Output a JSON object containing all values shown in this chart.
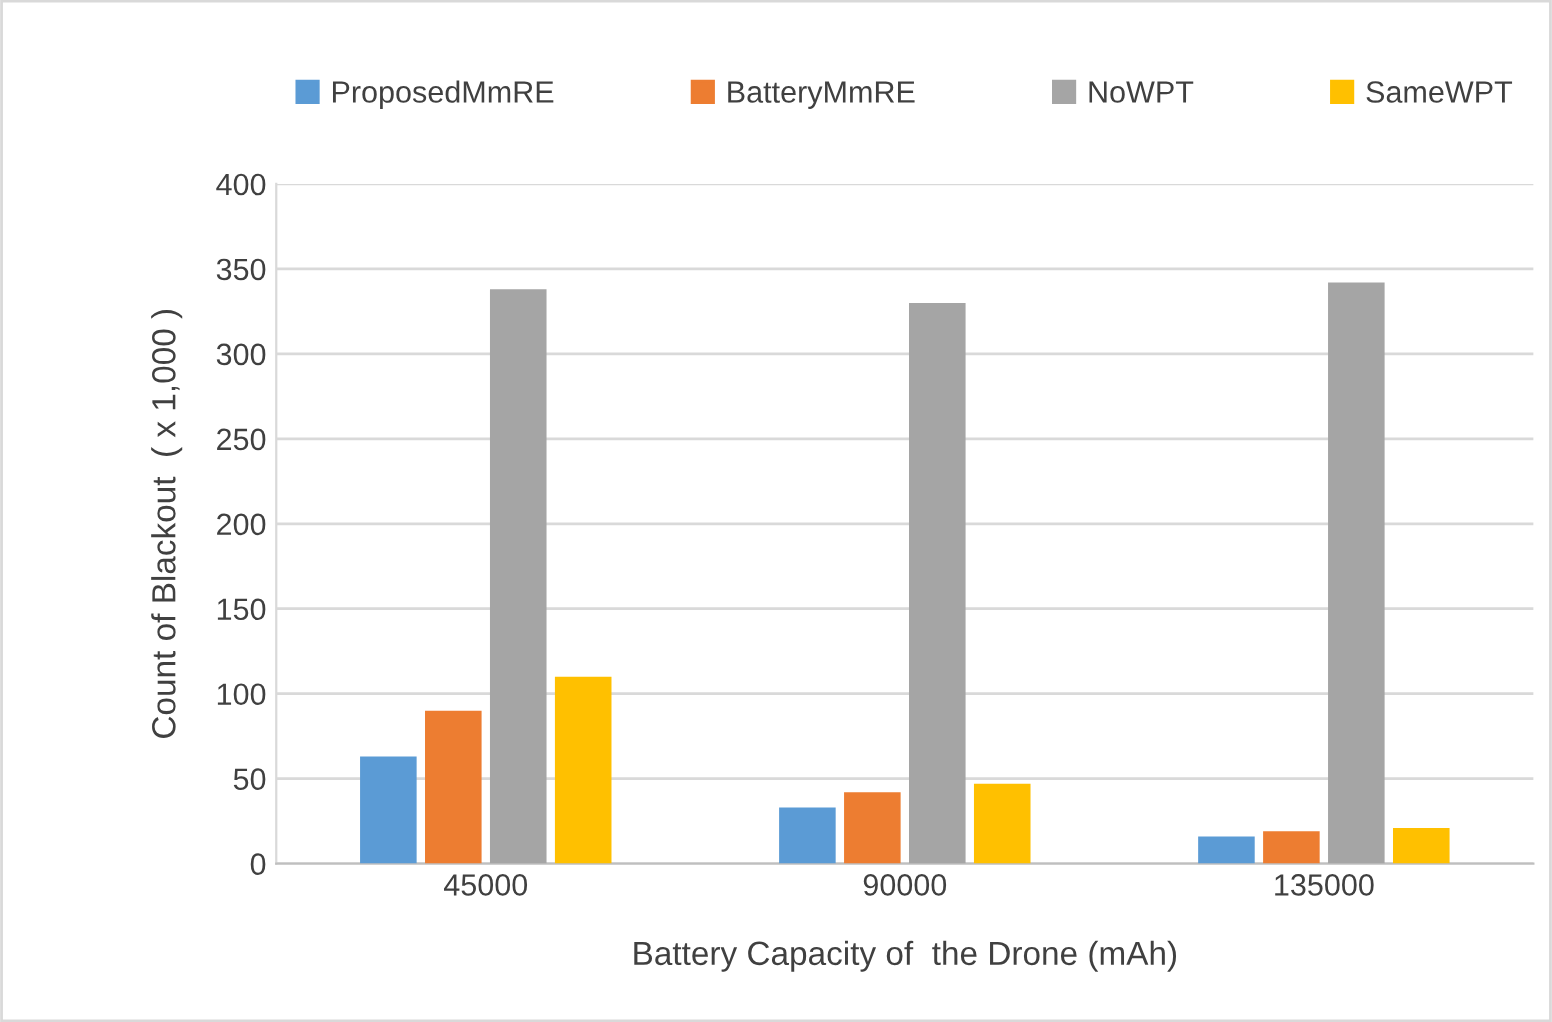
{
  "chart_data": {
    "type": "bar",
    "xlabel": "Battery Capacity of  the Drone (mAh)",
    "ylabel": "Count of Blackout  ( x 1,000 )",
    "categories": [
      "45000",
      "90000",
      "135000"
    ],
    "series": [
      {
        "name": "ProposedMmRE",
        "color": "#5b9bd5",
        "values": [
          63,
          33,
          16
        ]
      },
      {
        "name": "BatteryMmRE",
        "color": "#ed7d31",
        "values": [
          90,
          42,
          19
        ]
      },
      {
        "name": "NoWPT",
        "color": "#a5a5a5",
        "values": [
          338,
          330,
          342
        ]
      },
      {
        "name": "SameWPT",
        "color": "#ffc000",
        "values": [
          110,
          47,
          21
        ]
      }
    ],
    "ylim": [
      0,
      400
    ],
    "yticks": [
      0,
      50,
      100,
      150,
      200,
      250,
      300,
      350,
      400
    ],
    "grid": "y",
    "legend": "top"
  }
}
